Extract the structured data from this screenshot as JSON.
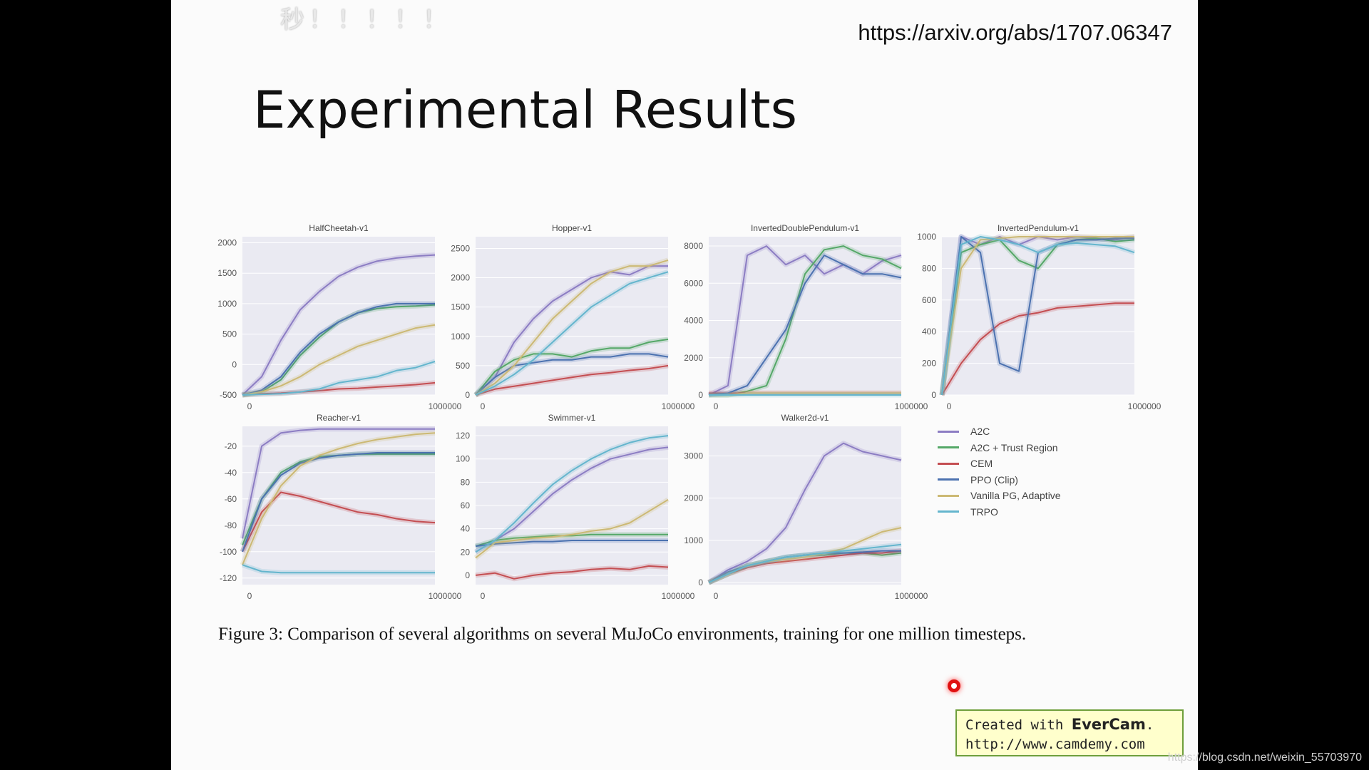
{
  "overlay": {
    "danmaku": "秒！！！！！"
  },
  "slide": {
    "url": "https://arxiv.org/abs/1707.06347",
    "title": "Experimental Results",
    "caption": "Figure 3: Comparison of several algorithms on several MuJoCo environments, training for one million timesteps."
  },
  "legend": [
    {
      "label": "A2C",
      "color": "#8c7dc3"
    },
    {
      "label": "A2C + Trust Region",
      "color": "#55a868"
    },
    {
      "label": "CEM",
      "color": "#c44e52"
    },
    {
      "label": "PPO (Clip)",
      "color": "#4c72b0"
    },
    {
      "label": "Vanilla PG, Adaptive",
      "color": "#ccb974"
    },
    {
      "label": "TRPO",
      "color": "#64b5cd"
    }
  ],
  "evercam": {
    "prefix": "Created with",
    "brand": "EverCam",
    "suffix": ".",
    "url": "http://www.camdemy.com"
  },
  "watermark": "https://blog.csdn.net/weixin_55703970",
  "chart_data": [
    {
      "type": "line",
      "title": "HalfCheetah-v1",
      "xticks": [
        "0",
        "1000000"
      ],
      "ylim": [
        -500,
        2100
      ],
      "yticks": [
        2000,
        1500,
        1000,
        500,
        0,
        -500
      ],
      "ytick_labels": [
        "2000",
        "1500",
        "1000",
        "500",
        "0",
        "-500"
      ],
      "x": [
        0,
        0.1,
        0.2,
        0.3,
        0.4,
        0.5,
        0.6,
        0.7,
        0.8,
        0.9,
        1.0
      ],
      "series": [
        {
          "name": "A2C",
          "values": [
            -500,
            -200,
            400,
            900,
            1200,
            1450,
            1600,
            1700,
            1750,
            1780,
            1800
          ]
        },
        {
          "name": "A2C + Trust Region",
          "values": [
            -500,
            -450,
            -250,
            150,
            450,
            700,
            850,
            920,
            950,
            960,
            980
          ]
        },
        {
          "name": "CEM",
          "values": [
            -500,
            -480,
            -470,
            -450,
            -430,
            -400,
            -390,
            -370,
            -350,
            -330,
            -300
          ]
        },
        {
          "name": "PPO (Clip)",
          "values": [
            -500,
            -420,
            -200,
            200,
            500,
            700,
            850,
            950,
            1000,
            1000,
            1000
          ]
        },
        {
          "name": "Vanilla PG, Adaptive",
          "values": [
            -500,
            -450,
            -350,
            -200,
            0,
            150,
            300,
            400,
            500,
            600,
            650
          ]
        },
        {
          "name": "TRPO",
          "values": [
            -500,
            -490,
            -480,
            -450,
            -400,
            -300,
            -250,
            -200,
            -100,
            -50,
            50
          ]
        }
      ]
    },
    {
      "type": "line",
      "title": "Hopper-v1",
      "xticks": [
        "0",
        "1000000"
      ],
      "ylim": [
        0,
        2700
      ],
      "yticks": [
        2500,
        2000,
        1500,
        1000,
        500,
        0
      ],
      "ytick_labels": [
        "2500",
        "2000",
        "1500",
        "1000",
        "500",
        "0"
      ],
      "x": [
        0,
        0.1,
        0.2,
        0.3,
        0.4,
        0.5,
        0.6,
        0.7,
        0.8,
        0.9,
        1.0
      ],
      "series": [
        {
          "name": "A2C",
          "values": [
            0,
            300,
            900,
            1300,
            1600,
            1800,
            2000,
            2100,
            2050,
            2200,
            2200
          ]
        },
        {
          "name": "A2C + Trust Region",
          "values": [
            0,
            400,
            600,
            700,
            700,
            650,
            750,
            800,
            800,
            900,
            950
          ]
        },
        {
          "name": "CEM",
          "values": [
            0,
            100,
            150,
            200,
            250,
            300,
            350,
            380,
            420,
            450,
            500
          ]
        },
        {
          "name": "PPO (Clip)",
          "values": [
            0,
            300,
            500,
            550,
            600,
            600,
            650,
            650,
            700,
            700,
            650
          ]
        },
        {
          "name": "Vanilla PG, Adaptive",
          "values": [
            0,
            200,
            500,
            900,
            1300,
            1600,
            1900,
            2100,
            2200,
            2200,
            2300
          ]
        },
        {
          "name": "TRPO",
          "values": [
            0,
            150,
            350,
            600,
            900,
            1200,
            1500,
            1700,
            1900,
            2000,
            2100
          ]
        }
      ]
    },
    {
      "type": "line",
      "title": "InvertedDoublePendulum-v1",
      "xticks": [
        "0",
        "1000000"
      ],
      "ylim": [
        0,
        8500
      ],
      "yticks": [
        8000,
        6000,
        4000,
        2000,
        0
      ],
      "ytick_labels": [
        "8000",
        "6000",
        "4000",
        "2000",
        "0"
      ],
      "x": [
        0,
        0.1,
        0.2,
        0.3,
        0.4,
        0.5,
        0.6,
        0.7,
        0.8,
        0.9,
        1.0
      ],
      "series": [
        {
          "name": "A2C",
          "values": [
            0,
            500,
            7500,
            8000,
            7000,
            7500,
            6500,
            7000,
            6500,
            7200,
            7500
          ]
        },
        {
          "name": "A2C + Trust Region",
          "values": [
            0,
            0,
            200,
            500,
            3000,
            6500,
            7800,
            8000,
            7500,
            7300,
            6800
          ]
        },
        {
          "name": "CEM",
          "values": [
            100,
            100,
            100,
            100,
            100,
            100,
            100,
            100,
            100,
            100,
            100
          ]
        },
        {
          "name": "PPO (Clip)",
          "values": [
            0,
            100,
            500,
            2000,
            3500,
            6000,
            7500,
            7000,
            6500,
            6500,
            6300
          ]
        },
        {
          "name": "Vanilla PG, Adaptive",
          "values": [
            0,
            0,
            100,
            100,
            100,
            100,
            100,
            100,
            100,
            100,
            100
          ]
        },
        {
          "name": "TRPO",
          "values": [
            0,
            0,
            0,
            0,
            0,
            0,
            0,
            0,
            0,
            0,
            0
          ]
        }
      ]
    },
    {
      "type": "line",
      "title": "InvertedPendulum-v1",
      "xticks": [
        "0",
        "1000000"
      ],
      "ylim": [
        0,
        1000
      ],
      "yticks": [
        1000,
        800,
        600,
        400,
        200,
        0
      ],
      "ytick_labels": [
        "1000",
        "800",
        "600",
        "400",
        "200",
        "0"
      ],
      "x": [
        0,
        0.1,
        0.2,
        0.3,
        0.4,
        0.5,
        0.6,
        0.7,
        0.8,
        0.9,
        1.0
      ],
      "series": [
        {
          "name": "A2C",
          "values": [
            0,
            1000,
            950,
            1000,
            950,
            1000,
            980,
            1000,
            990,
            980,
            1000
          ]
        },
        {
          "name": "A2C + Trust Region",
          "values": [
            0,
            900,
            950,
            980,
            850,
            800,
            950,
            980,
            990,
            970,
            980
          ]
        },
        {
          "name": "CEM",
          "values": [
            0,
            200,
            350,
            450,
            500,
            520,
            550,
            560,
            570,
            580,
            580
          ]
        },
        {
          "name": "PPO (Clip)",
          "values": [
            0,
            1000,
            900,
            200,
            150,
            900,
            950,
            980,
            980,
            990,
            990
          ]
        },
        {
          "name": "Vanilla PG, Adaptive",
          "values": [
            0,
            800,
            980,
            990,
            1000,
            1000,
            1000,
            1000,
            1000,
            1000,
            1000
          ]
        },
        {
          "name": "TRPO",
          "values": [
            0,
            950,
            1000,
            980,
            950,
            900,
            950,
            960,
            950,
            940,
            900
          ]
        }
      ]
    },
    {
      "type": "line",
      "title": "Reacher-v1",
      "xticks": [
        "0",
        "1000000"
      ],
      "ylim": [
        -125,
        -5
      ],
      "yticks": [
        -20,
        -40,
        -60,
        -80,
        -100,
        -120
      ],
      "ytick_labels": [
        "-20",
        "-40",
        "-60",
        "-80",
        "-100",
        "-120"
      ],
      "x": [
        0,
        0.1,
        0.2,
        0.3,
        0.4,
        0.5,
        0.6,
        0.7,
        0.8,
        0.9,
        1.0
      ],
      "series": [
        {
          "name": "A2C",
          "values": [
            -90,
            -20,
            -10,
            -8,
            -7,
            -7,
            -7,
            -7,
            -7,
            -7,
            -7
          ]
        },
        {
          "name": "A2C + Trust Region",
          "values": [
            -95,
            -60,
            -40,
            -32,
            -28,
            -27,
            -26,
            -26,
            -26,
            -26,
            -26
          ]
        },
        {
          "name": "CEM",
          "values": [
            -100,
            -70,
            -55,
            -58,
            -62,
            -66,
            -70,
            -72,
            -75,
            -77,
            -78
          ]
        },
        {
          "name": "PPO (Clip)",
          "values": [
            -100,
            -60,
            -42,
            -33,
            -29,
            -27,
            -26,
            -25,
            -25,
            -25,
            -25
          ]
        },
        {
          "name": "Vanilla PG, Adaptive",
          "values": [
            -110,
            -75,
            -50,
            -35,
            -27,
            -22,
            -18,
            -15,
            -13,
            -11,
            -10
          ]
        },
        {
          "name": "TRPO",
          "values": [
            -110,
            -115,
            -116,
            -116,
            -116,
            -116,
            -116,
            -116,
            -116,
            -116,
            -116
          ]
        }
      ]
    },
    {
      "type": "line",
      "title": "Swimmer-v1",
      "xticks": [
        "0",
        "1000000"
      ],
      "ylim": [
        -8,
        128
      ],
      "yticks": [
        120,
        100,
        80,
        60,
        40,
        20,
        0
      ],
      "ytick_labels": [
        "120",
        "100",
        "80",
        "60",
        "40",
        "20",
        "0"
      ],
      "x": [
        0,
        0.1,
        0.2,
        0.3,
        0.4,
        0.5,
        0.6,
        0.7,
        0.8,
        0.9,
        1.0
      ],
      "series": [
        {
          "name": "A2C",
          "values": [
            20,
            30,
            40,
            55,
            70,
            82,
            92,
            100,
            104,
            108,
            110
          ]
        },
        {
          "name": "A2C + Trust Region",
          "values": [
            25,
            30,
            32,
            33,
            34,
            34,
            35,
            35,
            35,
            35,
            35
          ]
        },
        {
          "name": "CEM",
          "values": [
            0,
            2,
            -3,
            0,
            2,
            3,
            5,
            6,
            5,
            8,
            7
          ]
        },
        {
          "name": "PPO (Clip)",
          "values": [
            25,
            27,
            28,
            29,
            29,
            30,
            30,
            30,
            30,
            30,
            30
          ]
        },
        {
          "name": "Vanilla PG, Adaptive",
          "values": [
            15,
            28,
            30,
            32,
            33,
            35,
            38,
            40,
            45,
            55,
            65
          ]
        },
        {
          "name": "TRPO",
          "values": [
            20,
            30,
            45,
            62,
            78,
            90,
            100,
            108,
            114,
            118,
            120
          ]
        }
      ]
    },
    {
      "type": "line",
      "title": "Walker2d-v1",
      "xticks": [
        "0",
        "1000000"
      ],
      "ylim": [
        -50,
        3700
      ],
      "yticks": [
        3000,
        2000,
        1000,
        0
      ],
      "ytick_labels": [
        "3000",
        "2000",
        "1000",
        "0"
      ],
      "x": [
        0,
        0.1,
        0.2,
        0.3,
        0.4,
        0.5,
        0.6,
        0.7,
        0.8,
        0.9,
        1.0
      ],
      "series": [
        {
          "name": "A2C",
          "values": [
            0,
            300,
            500,
            800,
            1300,
            2200,
            3000,
            3300,
            3100,
            3000,
            2900
          ]
        },
        {
          "name": "A2C + Trust Region",
          "values": [
            0,
            200,
            400,
            500,
            600,
            650,
            650,
            700,
            700,
            650,
            700
          ]
        },
        {
          "name": "CEM",
          "values": [
            0,
            200,
            350,
            450,
            500,
            550,
            600,
            650,
            700,
            700,
            750
          ]
        },
        {
          "name": "PPO (Clip)",
          "values": [
            0,
            250,
            400,
            500,
            600,
            650,
            700,
            700,
            720,
            750,
            750
          ]
        },
        {
          "name": "Vanilla PG, Adaptive",
          "values": [
            0,
            200,
            400,
            500,
            550,
            600,
            700,
            800,
            1000,
            1200,
            1300
          ]
        },
        {
          "name": "TRPO",
          "values": [
            0,
            200,
            400,
            500,
            600,
            650,
            700,
            750,
            800,
            850,
            900
          ]
        }
      ]
    }
  ]
}
